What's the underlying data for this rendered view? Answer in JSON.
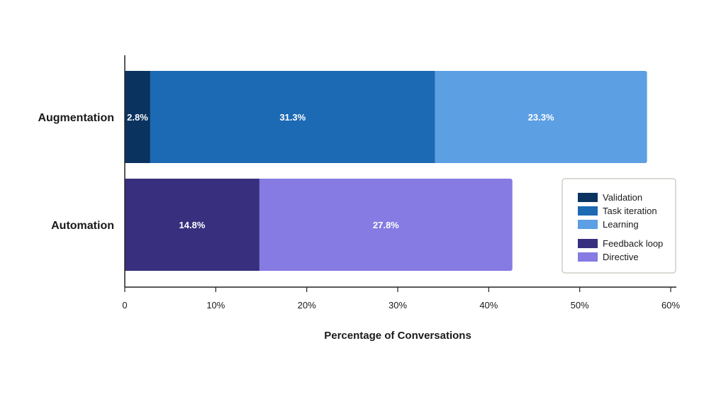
{
  "chart_data": {
    "type": "bar",
    "orientation": "horizontal",
    "stacked": true,
    "title": "",
    "xlabel": "Percentage of Conversations",
    "ylabel": "",
    "xlim": [
      0,
      60
    ],
    "x_ticks": [
      0,
      10,
      20,
      30,
      40,
      50,
      60
    ],
    "x_tick_labels": [
      "0",
      "10%",
      "20%",
      "30%",
      "40%",
      "50%",
      "60%"
    ],
    "grid": false,
    "legend_position": "right",
    "categories": [
      "Augmentation",
      "Automation"
    ],
    "series": [
      {
        "name": "Validation",
        "category": "Augmentation",
        "value": 2.8,
        "label": "2.8%",
        "color": "#0b3360"
      },
      {
        "name": "Task iteration",
        "category": "Augmentation",
        "value": 31.3,
        "label": "31.3%",
        "color": "#1c69b4"
      },
      {
        "name": "Learning",
        "category": "Augmentation",
        "value": 23.3,
        "label": "23.3%",
        "color": "#5c9fe3"
      },
      {
        "name": "Feedback loop",
        "category": "Automation",
        "value": 14.8,
        "label": "14.8%",
        "color": "#38307e"
      },
      {
        "name": "Directive",
        "category": "Automation",
        "value": 27.8,
        "label": "27.8%",
        "color": "#857be2"
      }
    ],
    "legend": {
      "groups": [
        [
          "Validation",
          "Task iteration",
          "Learning"
        ],
        [
          "Feedback loop",
          "Directive"
        ]
      ]
    },
    "colors": {
      "axis": "#222222",
      "text": "#1a1a1a",
      "bar_label": "#ffffff",
      "legend_border": "#cfcfc7"
    }
  }
}
